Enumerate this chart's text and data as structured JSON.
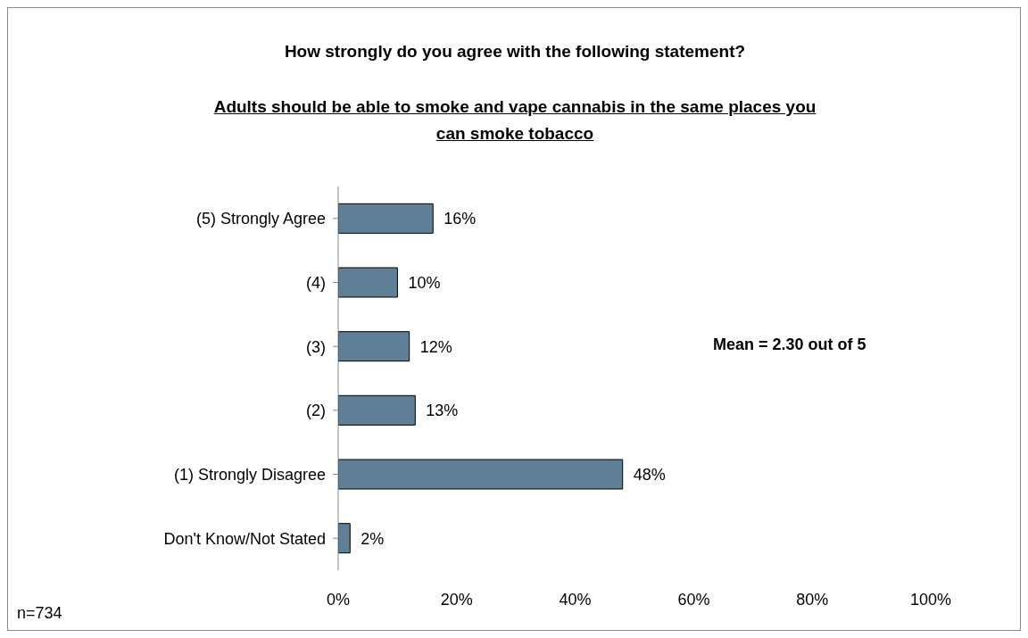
{
  "chart_data": {
    "type": "bar",
    "orientation": "horizontal",
    "title": "How strongly do you agree with the following statement?",
    "subtitle": "Adults should be able to smoke and vape cannabis in the same places you can smoke tobacco",
    "categories": [
      "(5) Strongly Agree",
      "(4)",
      "(3)",
      "(2)",
      "(1) Strongly Disagree",
      "Don't Know/Not Stated"
    ],
    "values": [
      16,
      10,
      12,
      13,
      48,
      2
    ],
    "color": "#5f7f96",
    "value_labels": [
      "16%",
      "10%",
      "12%",
      "13%",
      "48%",
      "2%"
    ],
    "xlim": [
      0,
      100
    ],
    "xticks": [
      {
        "value": 0,
        "label": "0%"
      },
      {
        "value": 20,
        "label": "20%"
      },
      {
        "value": 40,
        "label": "40%"
      },
      {
        "value": 60,
        "label": "60%"
      },
      {
        "value": 80,
        "label": "80%"
      },
      {
        "value": 100,
        "label": "100%"
      }
    ],
    "grid": false,
    "annotations": [
      "Mean = 2.30 out of 5",
      "n=734"
    ]
  }
}
